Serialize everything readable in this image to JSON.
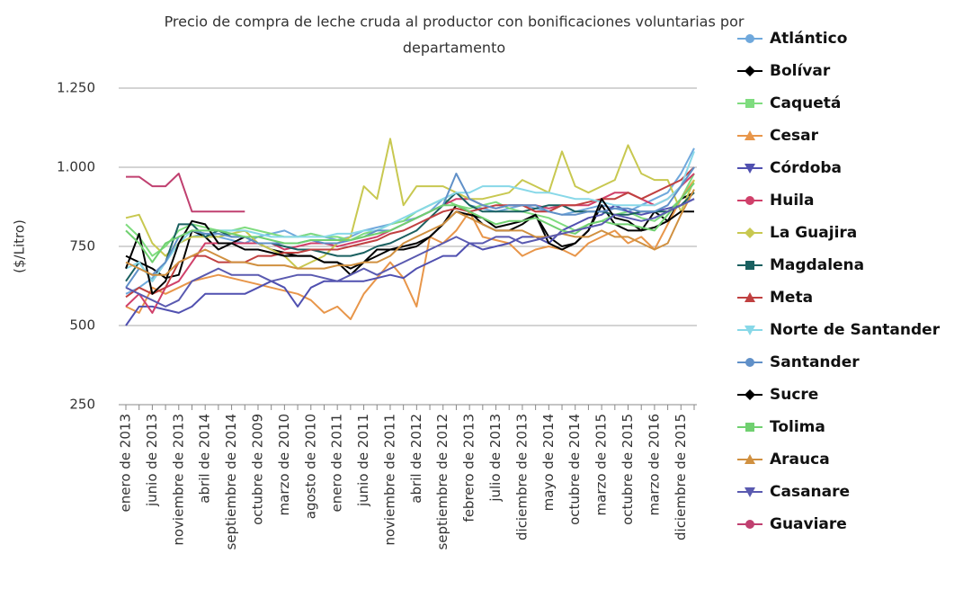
{
  "chart_data": {
    "type": "line",
    "title": [
      "Precio de compra de leche cruda al productor con bonificaciones voluntarias por",
      "departamento"
    ],
    "y_label": "($/Litro)",
    "ylim": [
      250,
      1250
    ],
    "yticks": [
      250,
      500,
      750,
      {
        "value": 1000,
        "label": "1.000"
      },
      {
        "value": 1250,
        "label": "1.250"
      }
    ],
    "grid": true,
    "legend": "right",
    "categories": [
      "enero de 2013",
      null,
      "junio de 2013",
      null,
      "noviembre de 2013",
      null,
      "abril de 2014",
      null,
      "septiembre de 2014",
      null,
      "octubre de 2009",
      null,
      "marzo de 2010",
      null,
      "agosto de 2010",
      null,
      "enero de 2011",
      null,
      "junio de 2011",
      null,
      "noviembre de 2011",
      null,
      "abril de 2012",
      null,
      "septiembre de 2012",
      null,
      "febrero de 2013",
      null,
      "julio de 2013",
      null,
      "diciembre de 2013",
      null,
      "mayo de 2014",
      null,
      "octubre de 2014",
      null,
      "marzo de 2015",
      null,
      "octubre de 2015",
      null,
      "marzo de 2016",
      null,
      "diciembre de 2015",
      null
    ],
    "series": [
      {
        "name": "Atlántico",
        "color": "#6fa8dc",
        "marker": "circle",
        "values": [
          600,
          620,
          650,
          700,
          760,
          780,
          790,
          780,
          770,
          760,
          780,
          790,
          800,
          780,
          790,
          780,
          770,
          780,
          800,
          810,
          820,
          830,
          840,
          860,
          900,
          920,
          880,
          870,
          860,
          870,
          880,
          870,
          860,
          850,
          860,
          870,
          880,
          870,
          860,
          880,
          900,
          920,
          980,
          1060
        ]
      },
      {
        "name": "Bolívar",
        "color": "#000000",
        "marker": "diamond",
        "values": [
          720,
          700,
          680,
          650,
          660,
          800,
          780,
          740,
          760,
          780,
          760,
          740,
          730,
          720,
          720,
          700,
          700,
          680,
          700,
          720,
          740,
          740,
          750,
          780,
          820,
          880,
          860,
          820,
          800,
          800,
          820,
          850,
          780,
          750,
          760,
          800,
          880,
          820,
          800,
          800,
          860,
          830,
          900,
          920
        ]
      },
      {
        "name": "Caquetá",
        "color": "#7fdc7f",
        "marker": "square",
        "values": [
          820,
          780,
          720,
          750,
          800,
          820,
          810,
          800,
          800,
          810,
          800,
          790,
          780,
          780,
          790,
          780,
          780,
          770,
          790,
          800,
          820,
          830,
          860,
          880,
          900,
          880,
          870,
          880,
          890,
          870,
          860,
          850,
          840,
          820,
          800,
          820,
          830,
          850,
          860,
          840,
          830,
          860,
          900,
          980
        ]
      },
      {
        "name": "Cesar",
        "color": "#e8964a",
        "marker": "triangle",
        "values": [
          560,
          540,
          620,
          600,
          620,
          640,
          650,
          660,
          650,
          640,
          630,
          620,
          610,
          600,
          580,
          540,
          560,
          520,
          600,
          650,
          700,
          650,
          560,
          780,
          760,
          800,
          860,
          780,
          770,
          760,
          720,
          740,
          750,
          740,
          720,
          760,
          780,
          800,
          760,
          780,
          740,
          820,
          900,
          960
        ]
      },
      {
        "name": "Córdoba",
        "color": "#5050b0",
        "marker": "triangle-down",
        "values": [
          500,
          560,
          560,
          550,
          540,
          560,
          600,
          600,
          600,
          600,
          620,
          640,
          620,
          560,
          620,
          640,
          640,
          640,
          640,
          650,
          660,
          650,
          680,
          700,
          720,
          720,
          760,
          740,
          750,
          760,
          780,
          780,
          760,
          800,
          820,
          840,
          850,
          880,
          860,
          850,
          860,
          870,
          880,
          900
        ]
      },
      {
        "name": "Huila",
        "color": "#d0406a",
        "marker": "circle",
        "values": [
          560,
          600,
          540,
          620,
          640,
          700,
          760,
          760,
          760,
          760,
          760,
          760,
          740,
          750,
          760,
          760,
          750,
          760,
          770,
          780,
          800,
          820,
          840,
          860,
          880,
          900,
          900,
          880,
          870,
          880,
          880,
          880,
          870,
          880,
          880,
          880,
          900,
          920,
          920,
          900,
          880,
          900,
          940,
          980
        ]
      },
      {
        "name": "La Guajira",
        "color": "#c8c850",
        "marker": "diamond",
        "values": [
          840,
          850,
          760,
          720,
          760,
          780,
          780,
          780,
          790,
          800,
          760,
          740,
          720,
          680,
          700,
          720,
          760,
          780,
          940,
          900,
          1090,
          880,
          940,
          940,
          940,
          920,
          900,
          900,
          910,
          920,
          960,
          940,
          920,
          1050,
          940,
          920,
          940,
          960,
          1070,
          980,
          960,
          960,
          860,
          960
        ]
      },
      {
        "name": "Magdalena",
        "color": "#1a6060",
        "marker": "square",
        "values": [
          640,
          700,
          640,
          700,
          820,
          820,
          780,
          800,
          780,
          780,
          760,
          760,
          750,
          740,
          740,
          730,
          720,
          720,
          730,
          750,
          760,
          780,
          800,
          840,
          880,
          920,
          880,
          860,
          860,
          860,
          860,
          870,
          880,
          880,
          860,
          860,
          860,
          850,
          850,
          860,
          860,
          860,
          880,
          920
        ]
      },
      {
        "name": "Meta",
        "color": "#c04040",
        "marker": "triangle",
        "values": [
          590,
          620,
          600,
          620,
          700,
          720,
          720,
          700,
          700,
          700,
          720,
          720,
          730,
          730,
          740,
          740,
          740,
          750,
          760,
          770,
          790,
          800,
          820,
          840,
          860,
          870,
          860,
          870,
          880,
          880,
          880,
          860,
          860,
          880,
          880,
          890,
          900,
          900,
          920,
          900,
          920,
          940,
          960,
          1000
        ]
      },
      {
        "name": "Norte de Santander",
        "color": "#88d8e8",
        "marker": "triangle-down",
        "values": [
          680,
          700,
          640,
          700,
          760,
          800,
          800,
          800,
          800,
          800,
          790,
          780,
          780,
          780,
          780,
          780,
          790,
          790,
          800,
          800,
          820,
          840,
          860,
          880,
          900,
          920,
          920,
          940,
          940,
          940,
          930,
          920,
          920,
          910,
          900,
          900,
          890,
          880,
          880,
          880,
          880,
          900,
          940,
          1050
        ]
      },
      {
        "name": "Santander",
        "color": "#6090c8",
        "marker": "circle",
        "values": [
          620,
          680,
          660,
          700,
          780,
          800,
          790,
          790,
          780,
          780,
          760,
          760,
          760,
          760,
          770,
          760,
          760,
          770,
          780,
          800,
          800,
          820,
          840,
          860,
          880,
          980,
          900,
          880,
          870,
          880,
          880,
          880,
          860,
          850,
          850,
          860,
          860,
          870,
          870,
          860,
          860,
          880,
          940,
          1000
        ]
      },
      {
        "name": "Sucre",
        "color": "#000000",
        "marker": "diamond",
        "values": [
          680,
          790,
          600,
          640,
          760,
          830,
          820,
          760,
          760,
          740,
          740,
          730,
          720,
          720,
          720,
          700,
          700,
          660,
          700,
          740,
          740,
          750,
          760,
          780,
          820,
          860,
          850,
          840,
          810,
          820,
          830,
          850,
          760,
          740,
          760,
          800,
          900,
          840,
          830,
          800,
          810,
          830,
          860,
          860
        ]
      },
      {
        "name": "Tolima",
        "color": "#70d070",
        "marker": "square",
        "values": [
          800,
          760,
          700,
          760,
          780,
          800,
          800,
          800,
          790,
          780,
          780,
          770,
          760,
          760,
          770,
          770,
          770,
          770,
          780,
          790,
          800,
          820,
          840,
          860,
          880,
          880,
          860,
          840,
          820,
          830,
          830,
          840,
          820,
          800,
          790,
          820,
          830,
          820,
          820,
          810,
          800,
          850,
          900,
          950
        ]
      },
      {
        "name": "Arauca",
        "color": "#d09040",
        "marker": "triangle",
        "values": [
          700,
          680,
          660,
          660,
          700,
          720,
          740,
          720,
          700,
          700,
          690,
          690,
          690,
          680,
          680,
          680,
          690,
          690,
          700,
          700,
          720,
          760,
          780,
          800,
          820,
          860,
          840,
          820,
          800,
          800,
          800,
          780,
          780,
          790,
          780,
          780,
          800,
          780,
          780,
          760,
          740,
          760,
          850,
          930
        ]
      },
      {
        "name": "Casanare",
        "color": "#5a5ab0",
        "marker": "triangle-down",
        "values": [
          620,
          600,
          580,
          560,
          580,
          640,
          660,
          680,
          660,
          660,
          660,
          640,
          650,
          660,
          660,
          650,
          640,
          660,
          680,
          660,
          680,
          700,
          720,
          740,
          760,
          780,
          760,
          760,
          780,
          780,
          760,
          770,
          780,
          790,
          800,
          810,
          820,
          850,
          840,
          830,
          840,
          860,
          880,
          900
        ]
      },
      {
        "name": "Guaviare",
        "color": "#c04070",
        "marker": "circle",
        "values": [
          970,
          970,
          940,
          940,
          980,
          860,
          860,
          860,
          860,
          860,
          null,
          null,
          null,
          null,
          null,
          null,
          null,
          null,
          null,
          null,
          null,
          null,
          null,
          null,
          null,
          null,
          null,
          null,
          null,
          null,
          null,
          null,
          null,
          null,
          null,
          null,
          null,
          null,
          null,
          null,
          null,
          null,
          null,
          null
        ]
      }
    ]
  }
}
